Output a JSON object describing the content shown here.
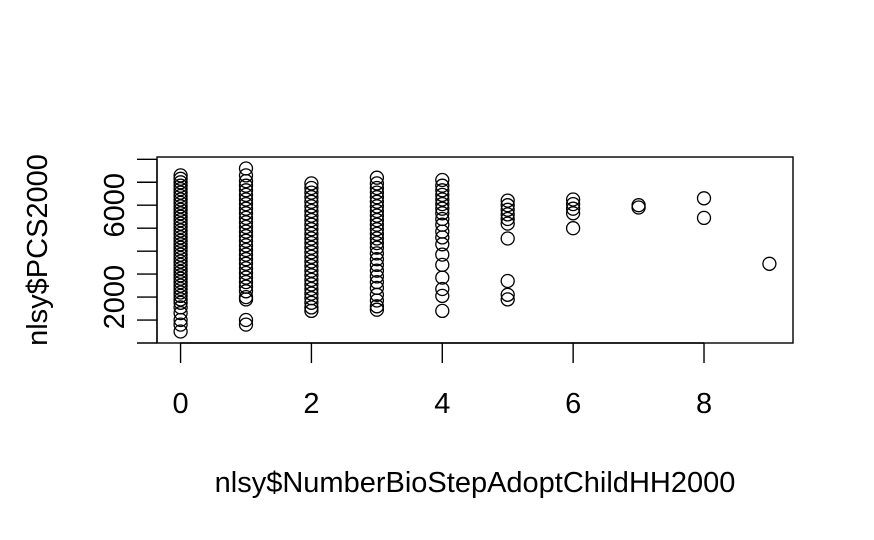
{
  "chart_data": {
    "type": "scatter",
    "xlabel": "nlsy$NumberBioStepAdoptChildHH2000",
    "ylabel": "nlsy$PCS2000",
    "xlim": [
      -0.36,
      9.36
    ],
    "ylim": [
      0,
      8100
    ],
    "x_ticks": [
      0,
      2,
      4,
      6,
      8
    ],
    "x_tick_labels": [
      "0",
      "2",
      "4",
      "6",
      "8"
    ],
    "y_ticks": [
      0,
      2000,
      4000,
      6000,
      8000
    ],
    "y_tick_labels": [
      "",
      "2000",
      "",
      "6000",
      ""
    ],
    "marker": "open-circle",
    "series": [
      {
        "points": [
          {
            "x": 0,
            "y": 7300
          },
          {
            "x": 0,
            "y": 7150
          },
          {
            "x": 0,
            "y": 7000
          },
          {
            "x": 0,
            "y": 6850
          },
          {
            "x": 0,
            "y": 6700
          },
          {
            "x": 0,
            "y": 6550
          },
          {
            "x": 0,
            "y": 6400
          },
          {
            "x": 0,
            "y": 6250
          },
          {
            "x": 0,
            "y": 6100
          },
          {
            "x": 0,
            "y": 5950
          },
          {
            "x": 0,
            "y": 5800
          },
          {
            "x": 0,
            "y": 5650
          },
          {
            "x": 0,
            "y": 5500
          },
          {
            "x": 0,
            "y": 5350
          },
          {
            "x": 0,
            "y": 5200
          },
          {
            "x": 0,
            "y": 5050
          },
          {
            "x": 0,
            "y": 4900
          },
          {
            "x": 0,
            "y": 4750
          },
          {
            "x": 0,
            "y": 4600
          },
          {
            "x": 0,
            "y": 4450
          },
          {
            "x": 0,
            "y": 4300
          },
          {
            "x": 0,
            "y": 4150
          },
          {
            "x": 0,
            "y": 4000
          },
          {
            "x": 0,
            "y": 3850
          },
          {
            "x": 0,
            "y": 3700
          },
          {
            "x": 0,
            "y": 3550
          },
          {
            "x": 0,
            "y": 3400
          },
          {
            "x": 0,
            "y": 3250
          },
          {
            "x": 0,
            "y": 3100
          },
          {
            "x": 0,
            "y": 2950
          },
          {
            "x": 0,
            "y": 2800
          },
          {
            "x": 0,
            "y": 2650
          },
          {
            "x": 0,
            "y": 2500
          },
          {
            "x": 0,
            "y": 2350
          },
          {
            "x": 0,
            "y": 2200
          },
          {
            "x": 0,
            "y": 2050
          },
          {
            "x": 0,
            "y": 1900
          },
          {
            "x": 0,
            "y": 1750
          },
          {
            "x": 0,
            "y": 1550
          },
          {
            "x": 0,
            "y": 1300
          },
          {
            "x": 0,
            "y": 1000
          },
          {
            "x": 0,
            "y": 800
          },
          {
            "x": 0,
            "y": 500
          },
          {
            "x": 1,
            "y": 7600
          },
          {
            "x": 1,
            "y": 7300
          },
          {
            "x": 1,
            "y": 7050
          },
          {
            "x": 1,
            "y": 6850
          },
          {
            "x": 1,
            "y": 6650
          },
          {
            "x": 1,
            "y": 6450
          },
          {
            "x": 1,
            "y": 6250
          },
          {
            "x": 1,
            "y": 6050
          },
          {
            "x": 1,
            "y": 5850
          },
          {
            "x": 1,
            "y": 5650
          },
          {
            "x": 1,
            "y": 5450
          },
          {
            "x": 1,
            "y": 5250
          },
          {
            "x": 1,
            "y": 5050
          },
          {
            "x": 1,
            "y": 4850
          },
          {
            "x": 1,
            "y": 4650
          },
          {
            "x": 1,
            "y": 4450
          },
          {
            "x": 1,
            "y": 4250
          },
          {
            "x": 1,
            "y": 4050
          },
          {
            "x": 1,
            "y": 3850
          },
          {
            "x": 1,
            "y": 3650
          },
          {
            "x": 1,
            "y": 3450
          },
          {
            "x": 1,
            "y": 3250
          },
          {
            "x": 1,
            "y": 3050
          },
          {
            "x": 1,
            "y": 2850
          },
          {
            "x": 1,
            "y": 2650
          },
          {
            "x": 1,
            "y": 2450
          },
          {
            "x": 1,
            "y": 2250
          },
          {
            "x": 1,
            "y": 2000
          },
          {
            "x": 1,
            "y": 1900
          },
          {
            "x": 1,
            "y": 1000
          },
          {
            "x": 1,
            "y": 800
          },
          {
            "x": 2,
            "y": 6950
          },
          {
            "x": 2,
            "y": 6750
          },
          {
            "x": 2,
            "y": 6550
          },
          {
            "x": 2,
            "y": 6350
          },
          {
            "x": 2,
            "y": 6150
          },
          {
            "x": 2,
            "y": 5950
          },
          {
            "x": 2,
            "y": 5750
          },
          {
            "x": 2,
            "y": 5550
          },
          {
            "x": 2,
            "y": 5350
          },
          {
            "x": 2,
            "y": 5150
          },
          {
            "x": 2,
            "y": 4950
          },
          {
            "x": 2,
            "y": 4750
          },
          {
            "x": 2,
            "y": 4550
          },
          {
            "x": 2,
            "y": 4350
          },
          {
            "x": 2,
            "y": 4150
          },
          {
            "x": 2,
            "y": 3950
          },
          {
            "x": 2,
            "y": 3750
          },
          {
            "x": 2,
            "y": 3550
          },
          {
            "x": 2,
            "y": 3350
          },
          {
            "x": 2,
            "y": 3150
          },
          {
            "x": 2,
            "y": 2950
          },
          {
            "x": 2,
            "y": 2750
          },
          {
            "x": 2,
            "y": 2550
          },
          {
            "x": 2,
            "y": 2350
          },
          {
            "x": 2,
            "y": 2150
          },
          {
            "x": 2,
            "y": 1950
          },
          {
            "x": 2,
            "y": 1750
          },
          {
            "x": 2,
            "y": 1550
          },
          {
            "x": 2,
            "y": 1400
          },
          {
            "x": 3,
            "y": 7200
          },
          {
            "x": 3,
            "y": 6950
          },
          {
            "x": 3,
            "y": 6750
          },
          {
            "x": 3,
            "y": 6550
          },
          {
            "x": 3,
            "y": 6350
          },
          {
            "x": 3,
            "y": 6150
          },
          {
            "x": 3,
            "y": 5950
          },
          {
            "x": 3,
            "y": 5750
          },
          {
            "x": 3,
            "y": 5550
          },
          {
            "x": 3,
            "y": 5350
          },
          {
            "x": 3,
            "y": 5150
          },
          {
            "x": 3,
            "y": 4950
          },
          {
            "x": 3,
            "y": 4750
          },
          {
            "x": 3,
            "y": 4550
          },
          {
            "x": 3,
            "y": 4350
          },
          {
            "x": 3,
            "y": 4150
          },
          {
            "x": 3,
            "y": 3900
          },
          {
            "x": 3,
            "y": 3650
          },
          {
            "x": 3,
            "y": 3400
          },
          {
            "x": 3,
            "y": 3150
          },
          {
            "x": 3,
            "y": 2900
          },
          {
            "x": 3,
            "y": 2650
          },
          {
            "x": 3,
            "y": 2400
          },
          {
            "x": 3,
            "y": 2100
          },
          {
            "x": 3,
            "y": 1850
          },
          {
            "x": 3,
            "y": 1600
          },
          {
            "x": 3,
            "y": 1450
          },
          {
            "x": 4,
            "y": 7100
          },
          {
            "x": 4,
            "y": 6850
          },
          {
            "x": 4,
            "y": 6650
          },
          {
            "x": 4,
            "y": 6450
          },
          {
            "x": 4,
            "y": 6250
          },
          {
            "x": 4,
            "y": 6050
          },
          {
            "x": 4,
            "y": 5850
          },
          {
            "x": 4,
            "y": 5650
          },
          {
            "x": 4,
            "y": 5400
          },
          {
            "x": 4,
            "y": 5150
          },
          {
            "x": 4,
            "y": 4850
          },
          {
            "x": 4,
            "y": 4600
          },
          {
            "x": 4,
            "y": 4300
          },
          {
            "x": 4,
            "y": 3850
          },
          {
            "x": 4,
            "y": 3400
          },
          {
            "x": 4,
            "y": 2850
          },
          {
            "x": 4,
            "y": 2350
          },
          {
            "x": 4,
            "y": 2050
          },
          {
            "x": 4,
            "y": 1400
          },
          {
            "x": 5,
            "y": 6200
          },
          {
            "x": 5,
            "y": 6000
          },
          {
            "x": 5,
            "y": 5800
          },
          {
            "x": 5,
            "y": 5600
          },
          {
            "x": 5,
            "y": 5400
          },
          {
            "x": 5,
            "y": 5200
          },
          {
            "x": 5,
            "y": 4550
          },
          {
            "x": 5,
            "y": 2700
          },
          {
            "x": 5,
            "y": 2100
          },
          {
            "x": 5,
            "y": 1900
          },
          {
            "x": 6,
            "y": 6250
          },
          {
            "x": 6,
            "y": 6050
          },
          {
            "x": 6,
            "y": 5850
          },
          {
            "x": 6,
            "y": 5650
          },
          {
            "x": 6,
            "y": 5000
          },
          {
            "x": 7,
            "y": 6000
          },
          {
            "x": 7,
            "y": 5900
          },
          {
            "x": 8,
            "y": 6300
          },
          {
            "x": 8,
            "y": 5450
          },
          {
            "x": 9,
            "y": 3450
          }
        ]
      }
    ]
  }
}
